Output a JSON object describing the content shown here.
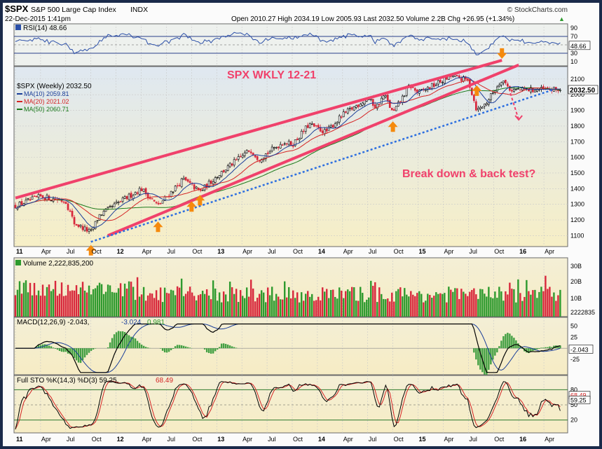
{
  "header": {
    "symbol": "$SPX",
    "name": "S&P 500 Large Cap Index",
    "exchange": "INDX",
    "timestamp": "22-Dec-2015 1:41pm",
    "source": "© StockCharts.com",
    "quote": "Open 2010.27  High 2034.19  Low 2005.93  Last 2032.50  Volume 2.2B  Chg +26.95 (+1.34%)",
    "chg_arrow": "▲"
  },
  "colors": {
    "bg_top": "#eaf0f6",
    "bg_bottom": "#f7f0c8",
    "frame": "#1a2a4a",
    "pink": "#f0416b",
    "blue_dotted": "#2d6fe0",
    "orange_arrow": "#f58a0d",
    "up_green": "#2e9a2e",
    "down_red": "#d8283c",
    "ma10": "#1b3f9a",
    "ma20": "#d42424",
    "ma50": "#1c7a1c",
    "volume_green": "#2e9a2e",
    "volume_red": "#d8283c"
  },
  "chart_data": [
    {
      "panel": "rsi",
      "type": "line",
      "title": "RSI(14) 48.66",
      "yticks": [
        90,
        70,
        50,
        30,
        10
      ],
      "last_value": "48.66",
      "levels": [
        70,
        30
      ]
    },
    {
      "panel": "price",
      "type": "candlestick",
      "title": "$SPX (Weekly) 2032.50",
      "annotation": "SPX WKLY 12-21",
      "annotation2": "Break down & back test?",
      "legend": [
        {
          "label": "MA(10) 2059.81",
          "color": "#1b3f9a"
        },
        {
          "label": "MA(20) 2021.02",
          "color": "#d42424"
        },
        {
          "label": "MA(50) 2060.71",
          "color": "#1c7a1c"
        }
      ],
      "ylim": [
        1030,
        2180
      ],
      "yticks": [
        1100,
        1200,
        1300,
        1400,
        1500,
        1600,
        1700,
        1800,
        1900,
        2000,
        2100
      ],
      "last_value": "2032.50",
      "x_labels": [
        "11",
        "Apr",
        "Jul",
        "Oct",
        "12",
        "Apr",
        "Jul",
        "Oct",
        "13",
        "Apr",
        "Jul",
        "Oct",
        "14",
        "Apr",
        "Jul",
        "Oct",
        "15",
        "Apr",
        "Jul",
        "Oct",
        "16",
        "Apr"
      ],
      "anchors": [
        [
          "2011-01",
          1290
        ],
        [
          "2011-04",
          1350
        ],
        [
          "2011-07",
          1320
        ],
        [
          "2011-08",
          1180
        ],
        [
          "2011-10",
          1120
        ],
        [
          "2011-11",
          1230
        ],
        [
          "2012-01",
          1300
        ],
        [
          "2012-04",
          1400
        ],
        [
          "2012-06",
          1290
        ],
        [
          "2012-09",
          1460
        ],
        [
          "2012-11",
          1380
        ],
        [
          "2013-01",
          1480
        ],
        [
          "2013-05",
          1650
        ],
        [
          "2013-06",
          1590
        ],
        [
          "2013-09",
          1700
        ],
        [
          "2013-10",
          1680
        ],
        [
          "2013-12",
          1810
        ],
        [
          "2014-02",
          1760
        ],
        [
          "2014-04",
          1870
        ],
        [
          "2014-07",
          1980
        ],
        [
          "2014-08",
          1920
        ],
        [
          "2014-09",
          2000
        ],
        [
          "2014-10",
          1880
        ],
        [
          "2014-12",
          2060
        ],
        [
          "2015-01",
          2010
        ],
        [
          "2015-05",
          2120
        ],
        [
          "2015-07",
          2090
        ],
        [
          "2015-08",
          1900
        ],
        [
          "2015-09",
          1940
        ],
        [
          "2015-11",
          2100
        ],
        [
          "2015-12",
          2032
        ]
      ],
      "trendlines": [
        {
          "name": "upper",
          "from": [
            "2011-01",
            1340
          ],
          "to": [
            "2015-11",
            2220
          ]
        },
        {
          "name": "lower",
          "from": [
            "2011-12",
            1100
          ],
          "to": [
            "2016-01",
            2190
          ]
        },
        {
          "name": "dotted",
          "from": [
            "2011-10",
            1060
          ],
          "to": [
            "2016-05",
            2030
          ]
        },
        {
          "name": "projection",
          "from": [
            "2015-12",
            2010
          ],
          "to": [
            "2016-01",
            1840
          ]
        }
      ],
      "up_arrows": [
        [
          "2011-10",
          1040
        ],
        [
          "2012-06",
          1190
        ],
        [
          "2012-10",
          1320
        ],
        [
          "2012-11",
          1360
        ],
        [
          "2014-10",
          1830
        ],
        [
          "2015-08",
          2060
        ]
      ],
      "down_arrows": [
        [
          "2015-11",
          2230
        ]
      ]
    },
    {
      "panel": "volume",
      "type": "bar",
      "title": "Volume 2,222,835,200",
      "yticks": [
        "30B",
        "20B",
        "10B"
      ],
      "last_value": "2222835"
    },
    {
      "panel": "macd",
      "type": "line",
      "title": "MACD(12,26,9) -2.043, -3.024, 0.981",
      "title_parts": [
        "MACD(12,26,9) -2.043,",
        "-3.024,",
        "0.981"
      ],
      "yticks": [
        50,
        25,
        -25
      ],
      "last_value": "-2.043"
    },
    {
      "panel": "sto",
      "type": "line",
      "title": "Full STO %K(14,3) %D(3) 59.25, 68.49",
      "title_parts": [
        "Full STO %K(14,3) %D(3) 59.25,",
        "68.49"
      ],
      "yticks": [
        80,
        50,
        20
      ],
      "last_values": [
        "68.49",
        "59.25"
      ],
      "levels": [
        80,
        20
      ]
    }
  ]
}
